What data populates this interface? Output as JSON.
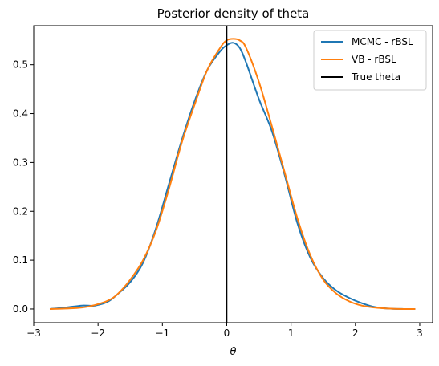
{
  "chart_data": {
    "type": "line",
    "title": "Posterior density of theta",
    "xlabel": "θ",
    "ylabel": "",
    "xlim": [
      -3.0,
      3.2
    ],
    "ylim": [
      -0.028,
      0.58
    ],
    "xticks": [
      -3,
      -2,
      -1,
      0,
      1,
      2,
      3
    ],
    "yticks": [
      0.0,
      0.1,
      0.2,
      0.3,
      0.4,
      0.5
    ],
    "ytick_labels": [
      "0.0",
      "0.1",
      "0.2",
      "0.3",
      "0.4",
      "0.5"
    ],
    "grid": false,
    "legend_position": "top-right",
    "vline": {
      "name": "True theta",
      "x": 0,
      "color": "#000000"
    },
    "series": [
      {
        "name": "MCMC - rBSL",
        "color": "#1f77b4",
        "x": [
          -2.75,
          -2.5,
          -2.25,
          -2.05,
          -1.85,
          -1.7,
          -1.5,
          -1.3,
          -1.1,
          -0.9,
          -0.7,
          -0.5,
          -0.3,
          -0.1,
          0.0,
          0.1,
          0.2,
          0.3,
          0.5,
          0.7,
          0.9,
          1.1,
          1.3,
          1.5,
          1.7,
          1.9,
          2.1,
          2.3,
          2.5,
          2.75,
          2.93
        ],
        "y": [
          0.0,
          0.003,
          0.007,
          0.007,
          0.015,
          0.03,
          0.055,
          0.095,
          0.165,
          0.255,
          0.345,
          0.425,
          0.49,
          0.528,
          0.54,
          0.545,
          0.535,
          0.505,
          0.43,
          0.365,
          0.275,
          0.175,
          0.105,
          0.063,
          0.038,
          0.023,
          0.012,
          0.004,
          0.001,
          0.0,
          0.0
        ]
      },
      {
        "name": "VB - rBSL",
        "color": "#ff7f0e",
        "x": [
          -2.75,
          -2.5,
          -2.25,
          -2.05,
          -1.85,
          -1.7,
          -1.5,
          -1.3,
          -1.1,
          -0.9,
          -0.7,
          -0.5,
          -0.3,
          -0.1,
          0.0,
          0.1,
          0.2,
          0.3,
          0.5,
          0.7,
          0.9,
          1.1,
          1.3,
          1.5,
          1.7,
          1.9,
          2.1,
          2.3,
          2.5,
          2.75,
          2.93
        ],
        "y": [
          0.0,
          0.001,
          0.003,
          0.008,
          0.017,
          0.03,
          0.06,
          0.1,
          0.16,
          0.245,
          0.34,
          0.418,
          0.49,
          0.535,
          0.55,
          0.553,
          0.55,
          0.535,
          0.465,
          0.375,
          0.28,
          0.185,
          0.11,
          0.06,
          0.032,
          0.016,
          0.007,
          0.003,
          0.001,
          0.0,
          0.0
        ]
      }
    ]
  }
}
